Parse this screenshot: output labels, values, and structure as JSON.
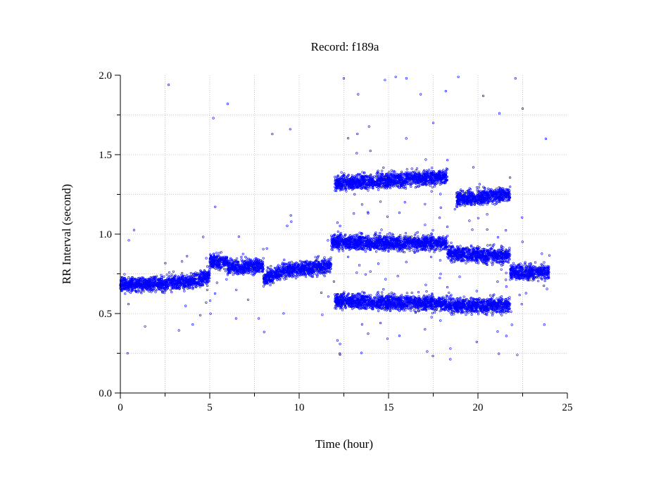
{
  "chart_data": {
    "type": "scatter",
    "title": "Record:  f189a",
    "xlabel": "Time (hour)",
    "ylabel": "RR Interval (second)",
    "xlim": [
      0,
      25
    ],
    "ylim": [
      0.0,
      2.0
    ],
    "xticks": [
      "0",
      "5",
      "10",
      "15",
      "20",
      "25"
    ],
    "yticks": [
      "0.0",
      "0.5",
      "1.0",
      "1.5",
      "2.0"
    ],
    "grid": true,
    "marker_color": "#0000ff",
    "series": [
      {
        "bands": [
          {
            "x": [
              0.0,
              4.0
            ],
            "y": [
              0.68,
              0.7
            ]
          },
          {
            "x": [
              4.0,
              5.0
            ],
            "y": [
              0.7,
              0.74
            ]
          },
          {
            "x": [
              5.0,
              6.0
            ],
            "y": [
              0.83,
              0.82
            ]
          },
          {
            "x": [
              6.0,
              8.0
            ],
            "y": [
              0.79,
              0.8
            ]
          },
          {
            "x": [
              8.0,
              9.0
            ],
            "y": [
              0.72,
              0.76
            ]
          },
          {
            "x": [
              9.0,
              11.8
            ],
            "y": [
              0.77,
              0.8
            ]
          },
          {
            "x": [
              11.8,
              18.3
            ],
            "y": [
              0.95,
              0.94
            ]
          },
          {
            "x": [
              12.0,
              18.3
            ],
            "y": [
              1.32,
              1.36
            ]
          },
          {
            "x": [
              12.0,
              18.3
            ],
            "y": [
              0.58,
              0.56
            ]
          },
          {
            "x": [
              18.3,
              21.8
            ],
            "y": [
              0.88,
              0.86
            ]
          },
          {
            "x": [
              18.8,
              21.8
            ],
            "y": [
              1.22,
              1.25
            ]
          },
          {
            "x": [
              18.3,
              21.8
            ],
            "y": [
              0.55,
              0.55
            ]
          },
          {
            "x": [
              21.8,
              24.0
            ],
            "y": [
              0.76,
              0.76
            ]
          }
        ],
        "outliers": [
          [
            0.4,
            0.25
          ],
          [
            2.7,
            1.94
          ],
          [
            5.2,
            1.73
          ],
          [
            6.0,
            1.82
          ],
          [
            8.5,
            1.63
          ],
          [
            9.5,
            1.66
          ],
          [
            12.5,
            1.98
          ],
          [
            13.3,
            1.88
          ],
          [
            14.8,
            1.97
          ],
          [
            15.4,
            1.99
          ],
          [
            16.0,
            1.98
          ],
          [
            16.8,
            1.88
          ],
          [
            17.5,
            1.7
          ],
          [
            18.2,
            1.9
          ],
          [
            18.9,
            1.99
          ],
          [
            20.3,
            1.87
          ],
          [
            21.2,
            1.76
          ],
          [
            22.1,
            1.98
          ],
          [
            22.5,
            1.79
          ],
          [
            22.2,
            0.24
          ],
          [
            23.8,
            1.6
          ]
        ]
      }
    ]
  }
}
